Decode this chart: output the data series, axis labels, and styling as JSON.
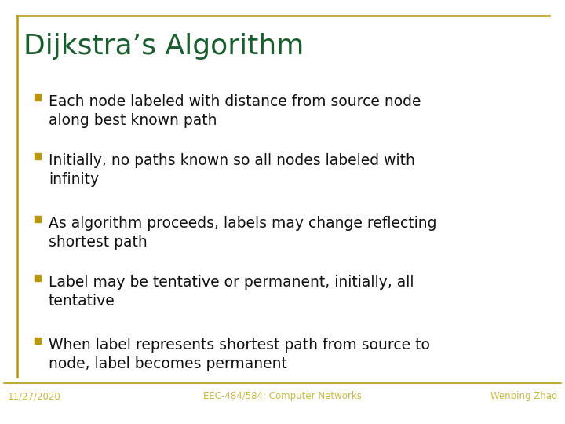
{
  "title": "Dijkstra’s Algorithm",
  "title_color": "#1a5e30",
  "title_fontsize": 26,
  "background_color": "#ffffff",
  "border_color": "#b8970a",
  "bullet_color": "#b8970a",
  "bullet_points": [
    "Each node labeled with distance from source node\nalong best known path",
    "Initially, no paths known so all nodes labeled with\ninfinity",
    "As algorithm proceeds, labels may change reflecting\nshortest path",
    "Label may be tentative or permanent, initially, all\ntentative",
    "When label represents shortest path from source to\nnode, label becomes permanent"
  ],
  "bullet_text_color": "#111111",
  "bullet_fontsize": 13.5,
  "footer_left": "11/27/2020",
  "footer_center": "EEC-484/584: Computer Networks",
  "footer_right": "Wenbing Zhao",
  "footer_color": "#c8b84a",
  "footer_fontsize": 8.5,
  "footer_line_color": "#b8970a"
}
